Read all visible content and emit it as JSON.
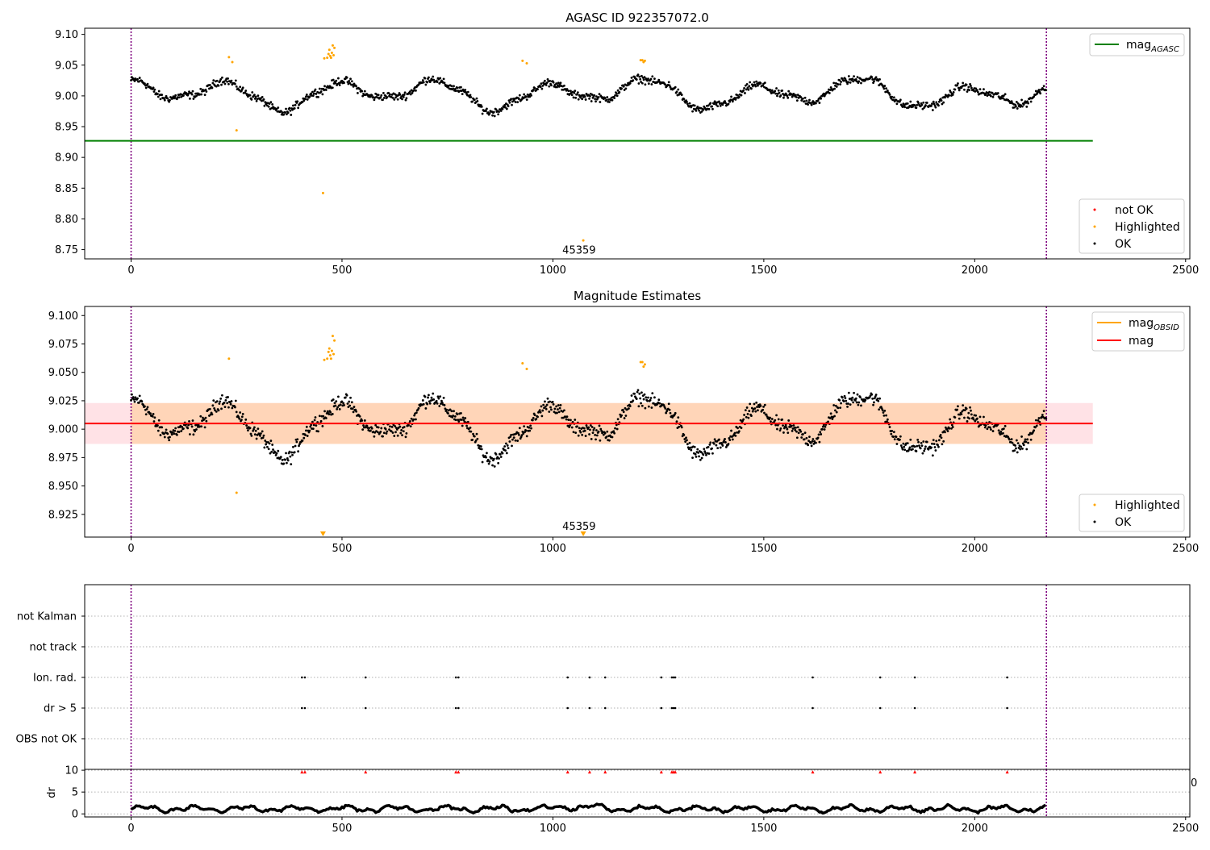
{
  "chart_data": [
    {
      "type": "scatter",
      "title": "AGASC ID 922357072.0",
      "xlim": [
        -110,
        2510
      ],
      "ylim": [
        8.735,
        9.11
      ],
      "xticks": [
        0,
        500,
        1000,
        1500,
        2000,
        2500
      ],
      "yticks": [
        8.75,
        8.8,
        8.85,
        8.9,
        8.95,
        9.0,
        9.05,
        9.1
      ],
      "ytick_labels": [
        "8.75",
        "8.80",
        "8.85",
        "8.90",
        "8.95",
        "9.00",
        "9.05",
        "9.10"
      ],
      "vlines": [
        0,
        2170
      ],
      "hline": {
        "y": 8.927,
        "x": [
          -110,
          2280
        ],
        "color": "#008000"
      },
      "legend_top": [
        {
          "label": "mag",
          "sub": "AGASC",
          "color": "#008000"
        }
      ],
      "legend_bottom": [
        {
          "label": "not OK",
          "color": "#ff0000"
        },
        {
          "label": "Highlighted",
          "color": "#ffa500"
        },
        {
          "label": "OK",
          "color": "#000000"
        }
      ],
      "annotation": {
        "text": "45359",
        "x": 1085,
        "y": 8.745
      },
      "highlighted": [
        [
          232,
          9.063
        ],
        [
          240,
          9.055
        ],
        [
          250,
          8.944
        ],
        [
          455,
          8.842
        ],
        [
          458,
          9.061
        ],
        [
          465,
          9.062
        ],
        [
          468,
          9.068
        ],
        [
          470,
          9.075
        ],
        [
          472,
          9.065
        ],
        [
          474,
          9.062
        ],
        [
          476,
          9.07
        ],
        [
          478,
          9.082
        ],
        [
          480,
          9.066
        ],
        [
          482,
          9.078
        ],
        [
          928,
          9.057
        ],
        [
          938,
          9.053
        ],
        [
          1072,
          8.765
        ],
        [
          1208,
          9.058
        ],
        [
          1212,
          9.058
        ],
        [
          1215,
          9.055
        ],
        [
          1218,
          9.057
        ]
      ]
    },
    {
      "type": "scatter",
      "title": "Magnitude Estimates",
      "xlim": [
        -110,
        2510
      ],
      "ylim": [
        8.905,
        9.108
      ],
      "xticks": [
        0,
        500,
        1000,
        1500,
        2000,
        2500
      ],
      "yticks": [
        8.925,
        8.95,
        8.975,
        9.0,
        9.025,
        9.05,
        9.075,
        9.1
      ],
      "ytick_labels": [
        "8.925",
        "8.950",
        "8.975",
        "9.000",
        "9.025",
        "9.050",
        "9.075",
        "9.100"
      ],
      "vlines": [
        0,
        2170
      ],
      "mag_line": {
        "y": 9.005,
        "x": [
          -110,
          2280
        ],
        "color": "#ff0000"
      },
      "band_outer": [
        8.987,
        9.023
      ],
      "band_inner": [
        8.987,
        9.023
      ],
      "legend_top": [
        {
          "label": "mag",
          "sub": "OBSID",
          "color": "#ffa500"
        },
        {
          "label": "mag",
          "sub": "",
          "color": "#ff0000"
        }
      ],
      "legend_bottom": [
        {
          "label": "Highlighted",
          "color": "#ffa500"
        },
        {
          "label": "OK",
          "color": "#000000"
        }
      ],
      "annotation": {
        "text": "45359",
        "x": 1085,
        "y": 8.912
      },
      "down_markers": [
        455,
        1072
      ],
      "highlighted": [
        [
          232,
          9.062
        ],
        [
          250,
          8.944
        ],
        [
          458,
          9.061
        ],
        [
          465,
          9.062
        ],
        [
          468,
          9.068
        ],
        [
          470,
          9.071
        ],
        [
          472,
          9.065
        ],
        [
          474,
          9.062
        ],
        [
          476,
          9.069
        ],
        [
          478,
          9.082
        ],
        [
          480,
          9.066
        ],
        [
          482,
          9.078
        ],
        [
          928,
          9.058
        ],
        [
          938,
          9.053
        ],
        [
          1208,
          9.059
        ],
        [
          1212,
          9.059
        ],
        [
          1215,
          9.055
        ],
        [
          1218,
          9.057
        ]
      ]
    },
    {
      "type": "scatter",
      "xlim": [
        -110,
        2510
      ],
      "categories": [
        "OBS not OK",
        "dr > 5",
        "Ion. rad.",
        "not track",
        "not Kalman"
      ],
      "vlines": [
        0,
        2170
      ],
      "event_times": [
        405,
        412,
        556,
        770,
        776,
        1035,
        1087,
        1124,
        1257,
        1282,
        1286,
        1290,
        1616,
        1776,
        1858,
        2077
      ]
    },
    {
      "type": "line",
      "xlim": [
        -110,
        2510
      ],
      "ylim": [
        -0.7,
        10.2
      ],
      "ylabel": "dr",
      "xticks": [
        0,
        500,
        1000,
        1500,
        2000,
        2500
      ],
      "yticks": [
        0,
        5,
        10
      ],
      "vlines": [
        0,
        2170
      ],
      "threshold": 10,
      "cut_tick_label": "0"
    }
  ]
}
